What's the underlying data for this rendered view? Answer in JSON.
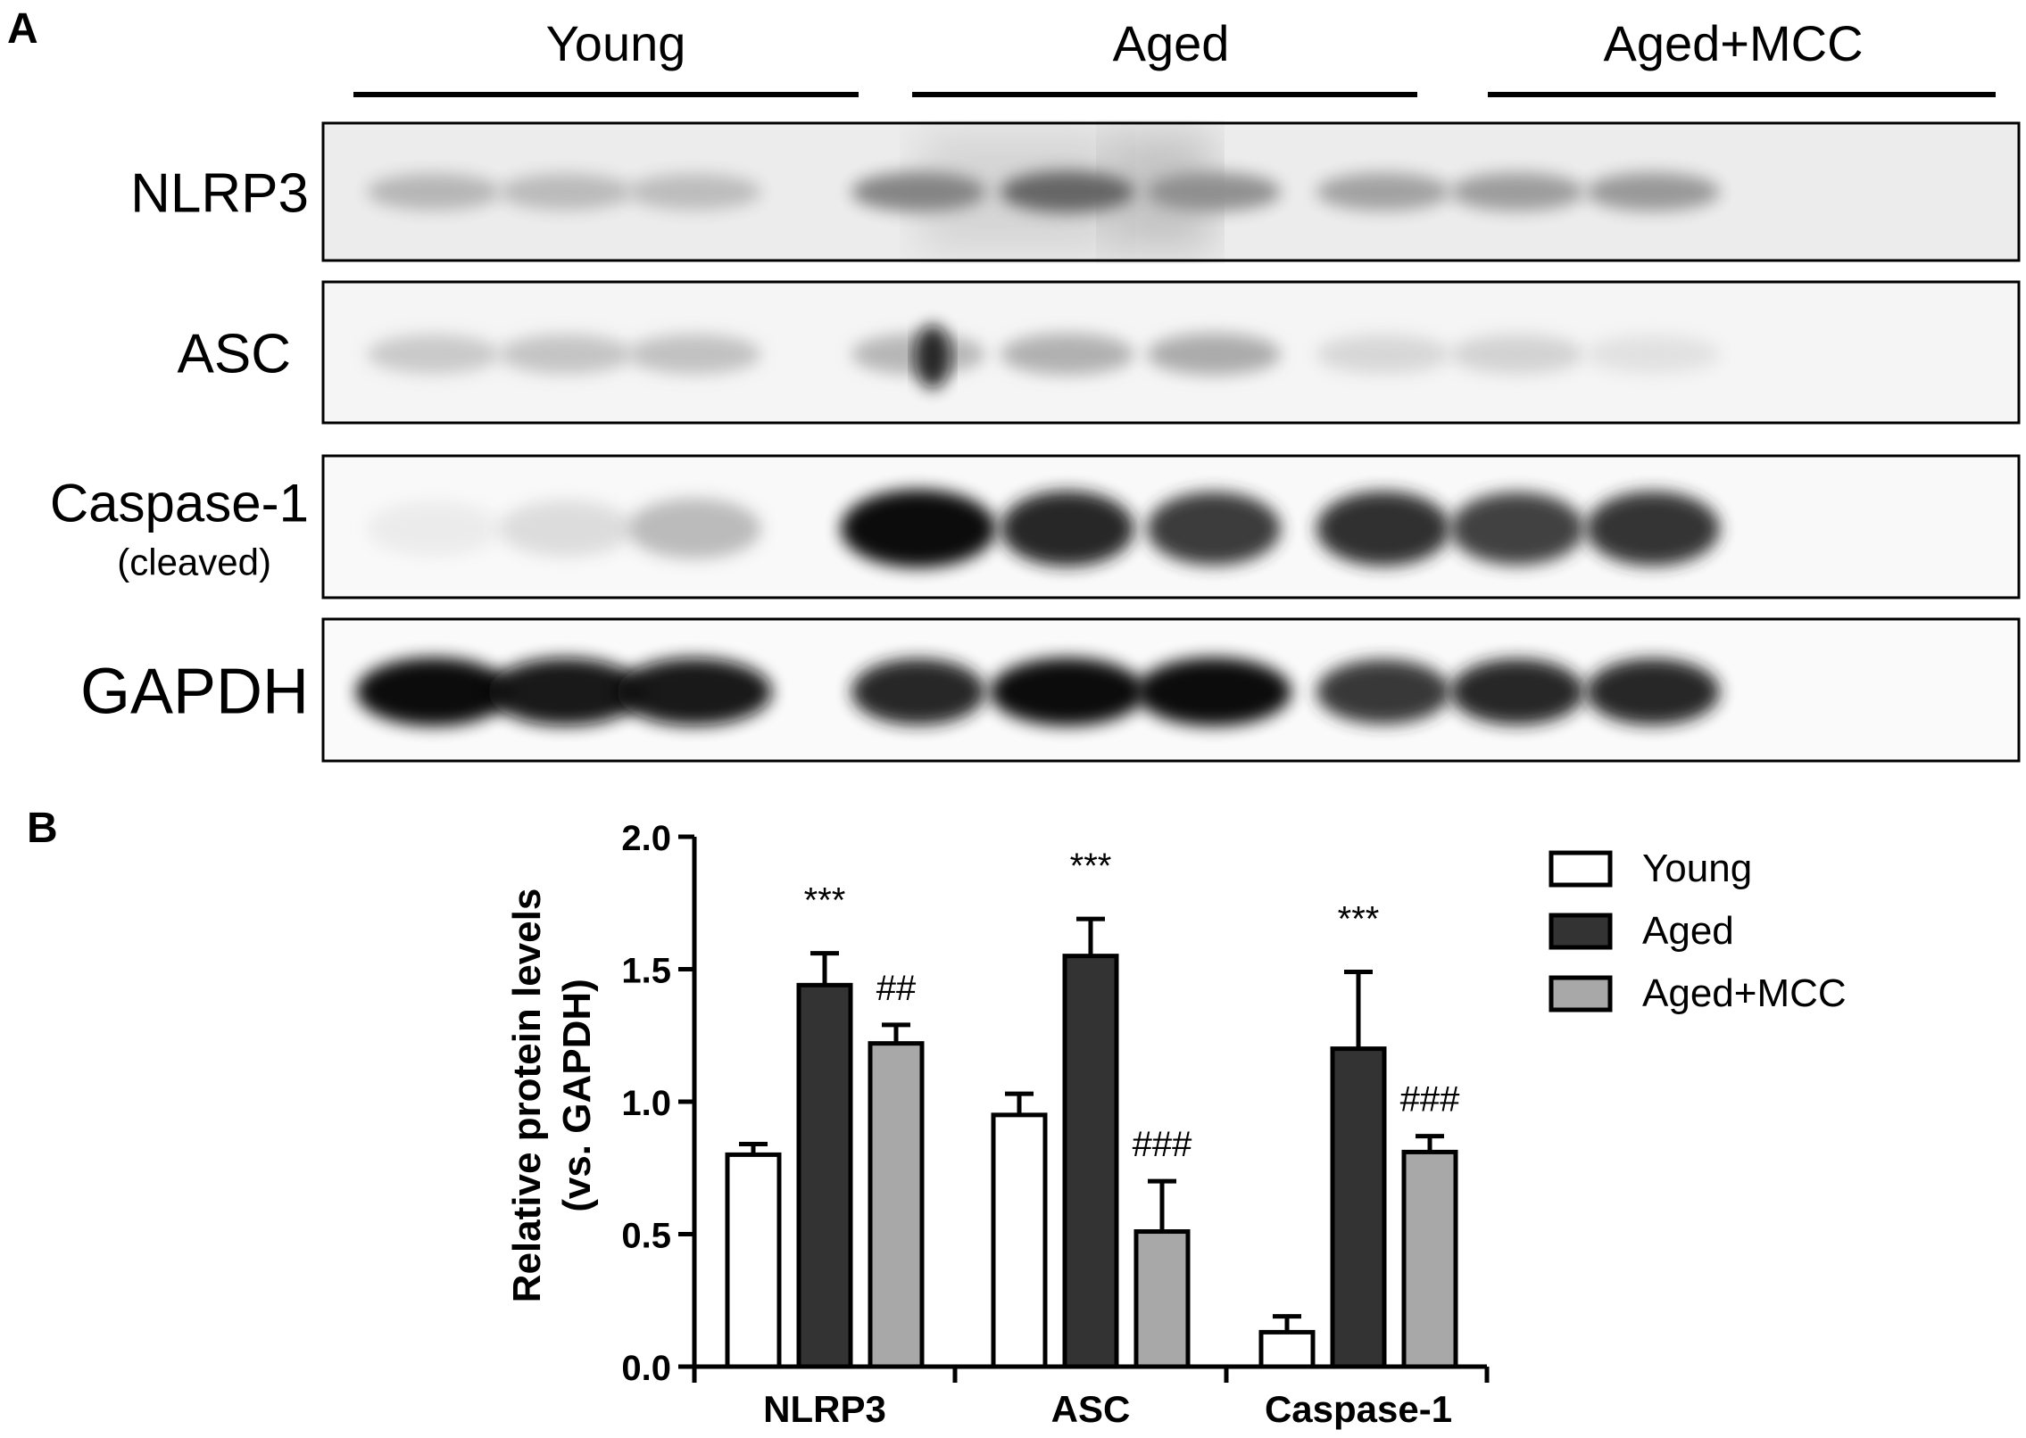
{
  "panel_a": {
    "label": "A",
    "groups": [
      "Young",
      "Aged",
      "Aged+MCC"
    ],
    "blots": [
      {
        "label": "NLRP3",
        "sublabel": ""
      },
      {
        "label": "ASC",
        "sublabel": ""
      },
      {
        "label": "Caspase-1",
        "sublabel": "(cleaved)"
      },
      {
        "label": "GAPDH",
        "sublabel": ""
      }
    ],
    "band_intensity": [
      [
        0.3,
        0.28,
        0.27,
        0.5,
        0.62,
        0.45,
        0.38,
        0.4,
        0.42
      ],
      [
        0.22,
        0.24,
        0.25,
        0.3,
        0.32,
        0.34,
        0.16,
        0.18,
        0.12
      ],
      [
        0.08,
        0.14,
        0.28,
        1.0,
        0.88,
        0.8,
        0.85,
        0.78,
        0.84
      ],
      [
        1.0,
        0.95,
        0.95,
        0.9,
        0.98,
        1.0,
        0.82,
        0.88,
        0.9
      ]
    ]
  },
  "chart_data": {
    "panel_label": "B",
    "type": "bar",
    "categories": [
      "NLRP3",
      "ASC",
      "Caspase-1"
    ],
    "series": [
      {
        "name": "Young",
        "color": "#ffffff",
        "values": [
          0.8,
          0.95,
          0.13
        ],
        "errors": [
          0.04,
          0.08,
          0.06
        ]
      },
      {
        "name": "Aged",
        "color": "#333333",
        "values": [
          1.44,
          1.55,
          1.2
        ],
        "errors": [
          0.12,
          0.14,
          0.29
        ]
      },
      {
        "name": "Aged+MCC",
        "color": "#a8a8a8",
        "values": [
          1.22,
          0.51,
          0.81
        ],
        "errors": [
          0.07,
          0.19,
          0.06
        ]
      }
    ],
    "annotations": [
      {
        "category": "NLRP3",
        "series": "Aged",
        "text": "***"
      },
      {
        "category": "NLRP3",
        "series": "Aged+MCC",
        "text": "##"
      },
      {
        "category": "ASC",
        "series": "Aged",
        "text": "***"
      },
      {
        "category": "ASC",
        "series": "Aged+MCC",
        "text": "###"
      },
      {
        "category": "Caspase-1",
        "series": "Aged",
        "text": "***"
      },
      {
        "category": "Caspase-1",
        "series": "Aged+MCC",
        "text": "###"
      }
    ],
    "ylabel_line1": "Relative protein levels",
    "ylabel_line2": "(vs. GAPDH)",
    "ylim": [
      0,
      2.0
    ],
    "yticks": [
      "0.0",
      "0.5",
      "1.0",
      "1.5",
      "2.0"
    ],
    "legend_position": "top-right",
    "grid": false
  }
}
